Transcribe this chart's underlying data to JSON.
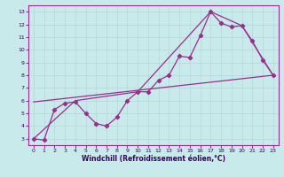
{
  "xlabel": "Windchill (Refroidissement éolien,°C)",
  "bg_color": "#c8eaea",
  "line_color": "#9b2d8e",
  "grid_color": "#b8dada",
  "spine_color": "#9b2d8e",
  "xlim": [
    -0.5,
    23.5
  ],
  "ylim": [
    2.5,
    13.5
  ],
  "xticks": [
    0,
    1,
    2,
    3,
    4,
    5,
    6,
    7,
    8,
    9,
    10,
    11,
    12,
    13,
    14,
    15,
    16,
    17,
    18,
    19,
    20,
    21,
    22,
    23
  ],
  "yticks": [
    3,
    4,
    5,
    6,
    7,
    8,
    9,
    10,
    11,
    12,
    13
  ],
  "line1_x": [
    0,
    1,
    2,
    3,
    4,
    5,
    6,
    7,
    8,
    9,
    10,
    11,
    12,
    13,
    14,
    15,
    16,
    17,
    18,
    19,
    20,
    21,
    22,
    23
  ],
  "line1_y": [
    3.0,
    2.9,
    5.3,
    5.8,
    5.9,
    5.0,
    4.2,
    4.0,
    4.7,
    6.0,
    6.7,
    6.7,
    7.6,
    8.0,
    9.5,
    9.4,
    11.1,
    13.0,
    12.1,
    11.8,
    11.9,
    10.7,
    9.2,
    8.0
  ],
  "line2_x": [
    0,
    4,
    10,
    17,
    20,
    23
  ],
  "line2_y": [
    3.0,
    6.0,
    6.7,
    13.0,
    11.9,
    8.0
  ],
  "line3_x": [
    0,
    23
  ],
  "line3_y": [
    5.9,
    8.0
  ],
  "tick_fontsize": 4.5,
  "xlabel_fontsize": 5.5,
  "marker_size": 2.2
}
